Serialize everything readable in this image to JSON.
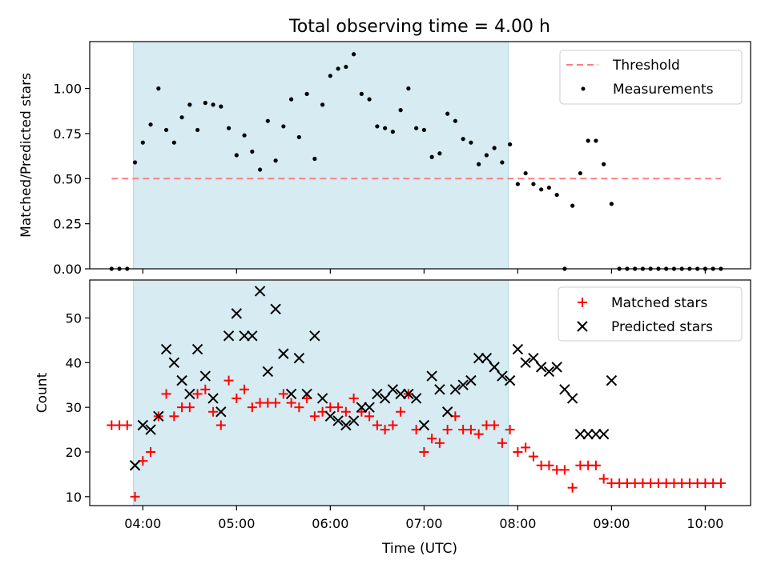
{
  "chart_data": {
    "title": "Total observing time = 4.00 h",
    "xlabel": "Time (UTC)",
    "x_unit": "time (UTC, HH:MM)",
    "xlim": [
      "03:26",
      "10:29"
    ],
    "xticks": [
      "04:00",
      "05:00",
      "06:00",
      "07:00",
      "08:00",
      "09:00",
      "10:00"
    ],
    "highlight": {
      "from": "03:54",
      "to": "07:54",
      "color": "#add8e6"
    },
    "top": {
      "type": "scatter",
      "ylabel": "Matched/Predicted stars",
      "ylim": [
        0,
        1.26
      ],
      "yticks": [
        0.0,
        0.25,
        0.5,
        0.75,
        1.0
      ],
      "threshold": {
        "name": "Threshold",
        "value": 0.5,
        "x_from": "03:40",
        "x_to": "10:10",
        "color": "#ff7f7f"
      },
      "legend": {
        "loc": "upper right",
        "entries": [
          "Threshold",
          "Measurements"
        ]
      },
      "series": [
        {
          "name": "Measurements",
          "color": "#000000",
          "x": [
            "03:40",
            "03:45",
            "03:50",
            "03:55",
            "04:00",
            "04:05",
            "04:10",
            "04:15",
            "04:20",
            "04:25",
            "04:30",
            "04:35",
            "04:40",
            "04:45",
            "04:50",
            "04:55",
            "05:00",
            "05:05",
            "05:10",
            "05:15",
            "05:20",
            "05:25",
            "05:30",
            "05:35",
            "05:40",
            "05:45",
            "05:50",
            "05:55",
            "06:00",
            "06:05",
            "06:10",
            "06:15",
            "06:20",
            "06:25",
            "06:30",
            "06:35",
            "06:40",
            "06:45",
            "06:50",
            "06:55",
            "07:00",
            "07:05",
            "07:10",
            "07:15",
            "07:20",
            "07:25",
            "07:30",
            "07:35",
            "07:40",
            "07:45",
            "07:50",
            "07:55",
            "08:00",
            "08:05",
            "08:10",
            "08:15",
            "08:20",
            "08:25",
            "08:30",
            "08:35",
            "08:40",
            "08:45",
            "08:50",
            "08:55",
            "09:00",
            "09:05",
            "09:10",
            "09:15",
            "09:20",
            "09:25",
            "09:30",
            "09:35",
            "09:40",
            "09:45",
            "09:50",
            "09:55",
            "10:00",
            "10:05",
            "10:10"
          ],
          "y": [
            0.0,
            0.0,
            0.0,
            0.59,
            0.7,
            0.8,
            1.0,
            0.77,
            0.7,
            0.84,
            0.91,
            0.77,
            0.92,
            0.91,
            0.9,
            0.78,
            0.63,
            0.74,
            0.65,
            0.55,
            0.82,
            0.6,
            0.79,
            0.94,
            0.73,
            0.97,
            0.61,
            0.91,
            1.07,
            1.11,
            1.12,
            1.19,
            0.97,
            0.94,
            0.79,
            0.78,
            0.76,
            0.88,
            1.0,
            0.78,
            0.77,
            0.62,
            0.64,
            0.86,
            0.82,
            0.72,
            0.7,
            0.58,
            0.63,
            0.67,
            0.59,
            0.69,
            0.47,
            0.53,
            0.47,
            0.44,
            0.45,
            0.41,
            0.0,
            0.35,
            0.53,
            0.71,
            0.71,
            0.58,
            0.36,
            0.0,
            0.0,
            0.0,
            0.0,
            0.0,
            0.0,
            0.0,
            0.0,
            0.0,
            0.0,
            0.0,
            0.0,
            0.0,
            0.0
          ]
        }
      ]
    },
    "bottom": {
      "type": "scatter",
      "ylabel": "Count",
      "ylim": [
        8,
        58.5
      ],
      "yticks": [
        10,
        20,
        30,
        40,
        50
      ],
      "legend": {
        "loc": "upper right",
        "entries": [
          "Matched stars",
          "Predicted stars"
        ]
      },
      "series": [
        {
          "name": "Matched stars",
          "marker": "+",
          "color": "#ff0000",
          "x": [
            "03:40",
            "03:45",
            "03:50",
            "03:55",
            "04:00",
            "04:05",
            "04:10",
            "04:15",
            "04:20",
            "04:25",
            "04:30",
            "04:35",
            "04:40",
            "04:45",
            "04:50",
            "04:55",
            "05:00",
            "05:05",
            "05:10",
            "05:15",
            "05:20",
            "05:25",
            "05:30",
            "05:35",
            "05:40",
            "05:45",
            "05:50",
            "05:55",
            "06:00",
            "06:05",
            "06:10",
            "06:15",
            "06:20",
            "06:25",
            "06:30",
            "06:35",
            "06:40",
            "06:45",
            "06:50",
            "06:55",
            "07:00",
            "07:05",
            "07:10",
            "07:15",
            "07:20",
            "07:25",
            "07:30",
            "07:35",
            "07:40",
            "07:45",
            "07:50",
            "07:55",
            "08:00",
            "08:05",
            "08:10",
            "08:15",
            "08:20",
            "08:25",
            "08:30",
            "08:35",
            "08:40",
            "08:45",
            "08:50",
            "08:55",
            "09:00",
            "09:05",
            "09:10",
            "09:15",
            "09:20",
            "09:25",
            "09:30",
            "09:35",
            "09:40",
            "09:45",
            "09:50",
            "09:55",
            "10:00",
            "10:05",
            "10:10"
          ],
          "y": [
            26,
            26,
            26,
            10,
            18,
            20,
            28,
            33,
            28,
            30,
            30,
            33,
            34,
            29,
            26,
            36,
            32,
            34,
            30,
            31,
            31,
            31,
            33,
            31,
            30,
            32,
            28,
            29,
            30,
            30,
            29,
            32,
            29,
            28,
            26,
            25,
            26,
            29,
            33,
            25,
            20,
            23,
            22,
            25,
            28,
            25,
            25,
            24,
            26,
            26,
            22,
            25,
            20,
            21,
            19,
            17,
            17,
            16,
            16,
            12,
            17,
            17,
            17,
            14,
            13,
            13,
            13,
            13,
            13,
            13,
            13,
            13,
            13,
            13,
            13,
            13,
            13,
            13,
            13
          ]
        },
        {
          "name": "Predicted stars",
          "marker": "x",
          "color": "#000000",
          "x": [
            "03:55",
            "04:00",
            "04:05",
            "04:10",
            "04:15",
            "04:20",
            "04:25",
            "04:30",
            "04:35",
            "04:40",
            "04:45",
            "04:50",
            "04:55",
            "05:00",
            "05:05",
            "05:10",
            "05:15",
            "05:20",
            "05:25",
            "05:30",
            "05:35",
            "05:40",
            "05:45",
            "05:50",
            "05:55",
            "06:00",
            "06:05",
            "06:10",
            "06:15",
            "06:20",
            "06:25",
            "06:30",
            "06:35",
            "06:40",
            "06:45",
            "06:50",
            "06:55",
            "07:00",
            "07:05",
            "07:10",
            "07:15",
            "07:20",
            "07:25",
            "07:30",
            "07:35",
            "07:40",
            "07:45",
            "07:50",
            "07:55",
            "08:00",
            "08:05",
            "08:10",
            "08:15",
            "08:20",
            "08:25",
            "08:30",
            "08:35",
            "08:40",
            "08:45",
            "08:50",
            "08:55",
            "09:00"
          ],
          "y": [
            17,
            26,
            25,
            28,
            43,
            40,
            36,
            33,
            43,
            37,
            32,
            29,
            46,
            51,
            46,
            46,
            56,
            38,
            52,
            42,
            33,
            41,
            33,
            46,
            32,
            28,
            27,
            26,
            27,
            30,
            30,
            33,
            32,
            34,
            33,
            33,
            32,
            26,
            37,
            34,
            29,
            34,
            35,
            36,
            41,
            41,
            39,
            37,
            36,
            43,
            40,
            41,
            39,
            38,
            39,
            34,
            32,
            24,
            24,
            24,
            24,
            36
          ]
        }
      ]
    }
  }
}
